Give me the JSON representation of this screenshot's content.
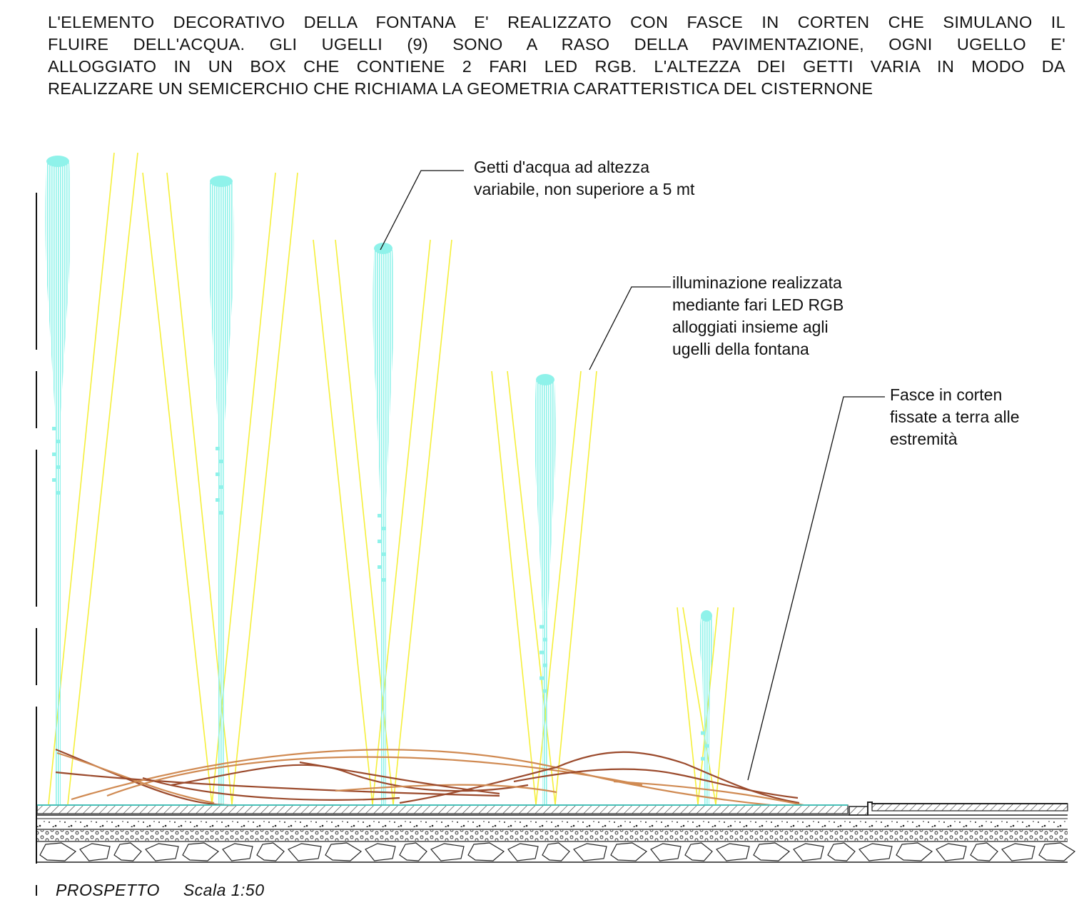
{
  "header_lines": [
    "L'ELEMENTO DECORATIVO DELLA FONTANA E' REALIZZATO CON FASCE IN CORTEN CHE SIMULANO IL",
    "FLUIRE DELL'ACQUA. GLI UGELLI (9) SONO A RASO DELLA PAVIMENTAZIONE, OGNI UGELLO  E'",
    "ALLOGGIATO IN UN BOX CHE CONTIENE 2 FARI LED RGB. L'ALTEZZA DEI GETTI VARIA IN MODO DA",
    "REALIZZARE UN SEMICERCHIO CHE RICHIAMA LA GEOMETRIA CARATTERISTICA DEL CISTERNONE"
  ],
  "annotations": {
    "jets": [
      "Getti d'acqua ad altezza",
      "variabile, non superiore a 5 mt"
    ],
    "lighting": [
      "illuminazione realizzata",
      "mediante fari LED RGB",
      "alloggiati insieme agli",
      "ugelli della fontana"
    ],
    "corten": [
      "Fasce in corten",
      "fissate a terra alle",
      "estremità"
    ]
  },
  "caption": {
    "title": "PROSPETTO",
    "scale": "Scala 1:50"
  },
  "colors": {
    "water": "#8ff2ea",
    "light_beam": "#f5ef3a",
    "corten_dark": "#9b4a2c",
    "corten_light": "#d08a52",
    "line": "#111111"
  }
}
